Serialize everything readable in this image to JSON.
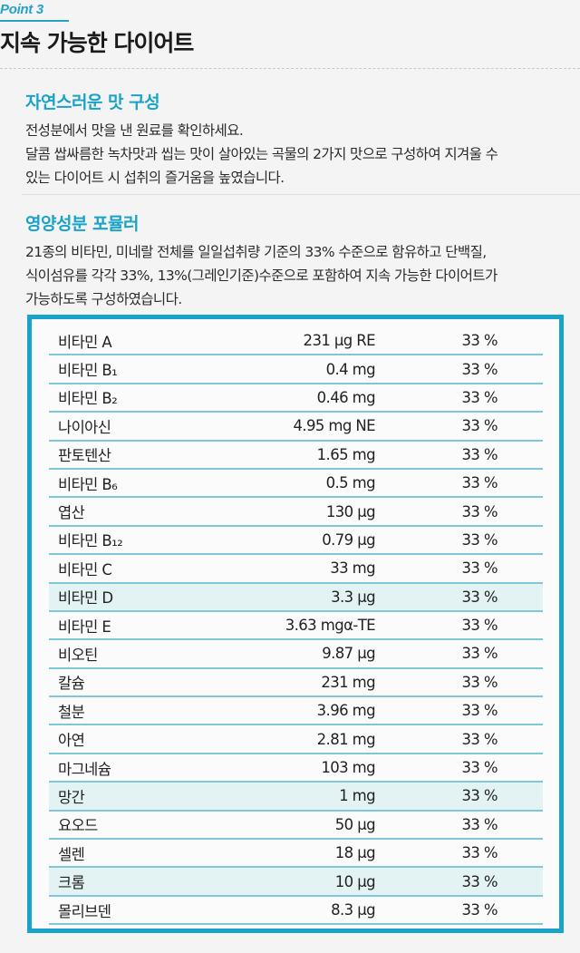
{
  "header": {
    "point_label": "Point 3",
    "title": "지속 가능한 다이어트"
  },
  "section1": {
    "heading": "자연스러운 맛 구성",
    "lines": [
      "전성분에서 맛을 낸 원료를 확인하세요.",
      "달콤 쌉싸름한 녹차맛과 씹는 맛이 살아있는 곡물의 2가지 맛으로 구성하여 지겨울 수",
      "있는 다이어트 시 섭취의 즐거움을 높였습니다."
    ]
  },
  "section2": {
    "heading": "영양성분 포뮬러",
    "lines": [
      "21종의 비타민, 미네랄 전체를 일일섭취량 기준의 33% 수준으로 함유하고 단백질,",
      "식이섬유를 각각 33%, 13%(그레인기준)수준으로 포함하여 지속 가능한 다이어트가",
      "가능하도록 구성하였습니다."
    ]
  },
  "nutrients": [
    {
      "name": "비타민 A",
      "amount": "231 μg RE",
      "percent": "33 %",
      "highlight": false
    },
    {
      "name": "비타민 B₁",
      "amount": "0.4 mg",
      "percent": "33 %",
      "highlight": false
    },
    {
      "name": "비타민 B₂",
      "amount": "0.46 mg",
      "percent": "33 %",
      "highlight": false
    },
    {
      "name": "나이아신",
      "amount": "4.95 mg NE",
      "percent": "33 %",
      "highlight": false
    },
    {
      "name": "판토텐산",
      "amount": "1.65 mg",
      "percent": "33 %",
      "highlight": false
    },
    {
      "name": "비타민 B₆",
      "amount": "0.5 mg",
      "percent": "33 %",
      "highlight": false
    },
    {
      "name": "엽산",
      "amount": "130 μg",
      "percent": "33 %",
      "highlight": false
    },
    {
      "name": "비타민 B₁₂",
      "amount": "0.79 μg",
      "percent": "33 %",
      "highlight": false
    },
    {
      "name": "비타민 C",
      "amount": "33 mg",
      "percent": "33 %",
      "highlight": false
    },
    {
      "name": "비타민 D",
      "amount": "3.3 μg",
      "percent": "33 %",
      "highlight": true
    },
    {
      "name": "비타민 E",
      "amount": "3.63 mgα-TE",
      "percent": "33 %",
      "highlight": false
    },
    {
      "name": "비오틴",
      "amount": "9.87 μg",
      "percent": "33 %",
      "highlight": false
    },
    {
      "name": "칼슘",
      "amount": "231 mg",
      "percent": "33 %",
      "highlight": false
    },
    {
      "name": "철분",
      "amount": "3.96 mg",
      "percent": "33 %",
      "highlight": false
    },
    {
      "name": "아연",
      "amount": "2.81 mg",
      "percent": "33 %",
      "highlight": false
    },
    {
      "name": "마그네슘",
      "amount": "103 mg",
      "percent": "33 %",
      "highlight": false
    },
    {
      "name": "망간",
      "amount": "1 mg",
      "percent": "33 %",
      "highlight": true
    },
    {
      "name": "요오드",
      "amount": "50 μg",
      "percent": "33 %",
      "highlight": false
    },
    {
      "name": "셀렌",
      "amount": "18 μg",
      "percent": "33 %",
      "highlight": false
    },
    {
      "name": "크롬",
      "amount": "10 μg",
      "percent": "33 %",
      "highlight": true
    },
    {
      "name": "몰리브덴",
      "amount": "8.3 μg",
      "percent": "33 %",
      "highlight": false
    }
  ],
  "colors": {
    "accent": "#1aa3c9",
    "row_border": "#7dc8da",
    "highlight_row": "#e3f3f4"
  }
}
